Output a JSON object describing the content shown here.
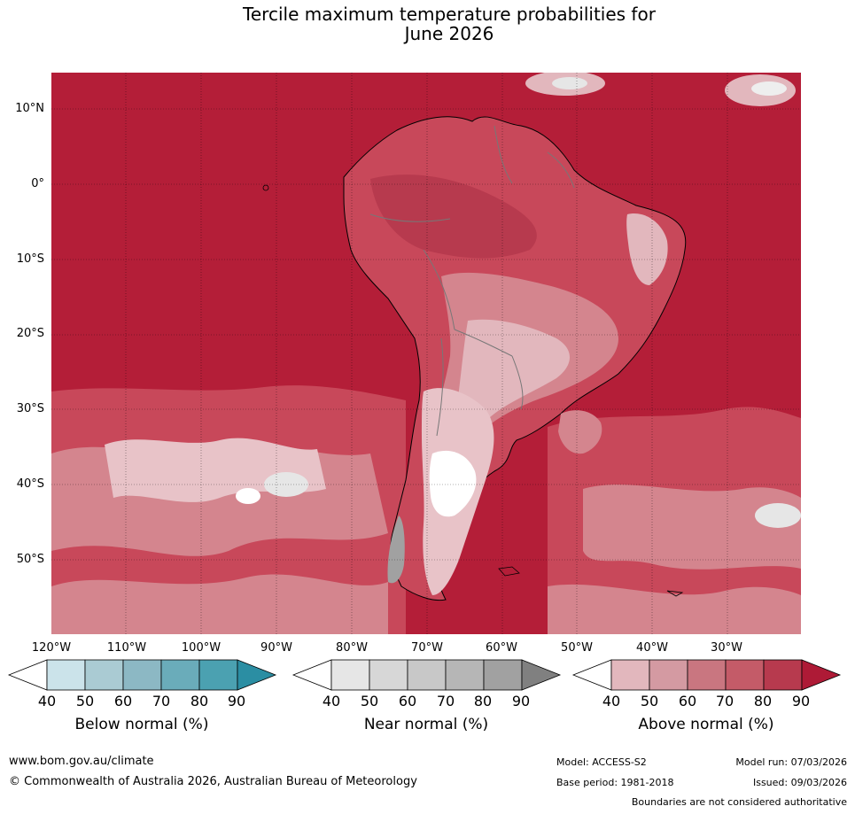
{
  "title": {
    "line1": "Tercile maximum temperature probabilities for",
    "line2": "June 2026"
  },
  "map": {
    "lat_labels": [
      "10°N",
      "0°",
      "10°S",
      "20°S",
      "30°S",
      "40°S",
      "50°S"
    ],
    "lon_labels": [
      "120°W",
      "110°W",
      "100°W",
      "90°W",
      "80°W",
      "70°W",
      "60°W",
      "50°W",
      "40°W",
      "30°W"
    ],
    "ocean_color": "#b41e38",
    "land_color": "#c8485a",
    "grid_color": "#000000"
  },
  "colorbars": [
    {
      "title": "Below normal (%)",
      "ticks": [
        "40",
        "50",
        "60",
        "70",
        "80",
        "90"
      ],
      "colors": [
        "#ffffff",
        "#cbe3ea",
        "#aacbd3",
        "#8cb8c4",
        "#6aacba",
        "#4ba1b1",
        "#2b8ea3"
      ]
    },
    {
      "title": "Near normal (%)",
      "ticks": [
        "40",
        "50",
        "60",
        "70",
        "80",
        "90"
      ],
      "colors": [
        "#ffffff",
        "#e6e6e6",
        "#d7d7d7",
        "#c8c8c8",
        "#b6b6b6",
        "#a1a1a1",
        "#808080"
      ]
    },
    {
      "title": "Above normal (%)",
      "ticks": [
        "40",
        "50",
        "60",
        "70",
        "80",
        "90"
      ],
      "colors": [
        "#ffffff",
        "#e2b7bd",
        "#d49aa2",
        "#c97680",
        "#c45b68",
        "#b73a4e",
        "#ae1a36"
      ]
    }
  ],
  "footer": {
    "website": "www.bom.gov.au/climate",
    "copyright": "© Commonwealth of Australia 2026, Australian Bureau of Meteorology",
    "model": "Model: ACCESS-S2",
    "model_run": "Model run: 07/03/2026",
    "base_period": "Base period: 1981-2018",
    "issued": "Issued: 09/03/2026",
    "disclaimer": "Boundaries are not considered authoritative"
  }
}
